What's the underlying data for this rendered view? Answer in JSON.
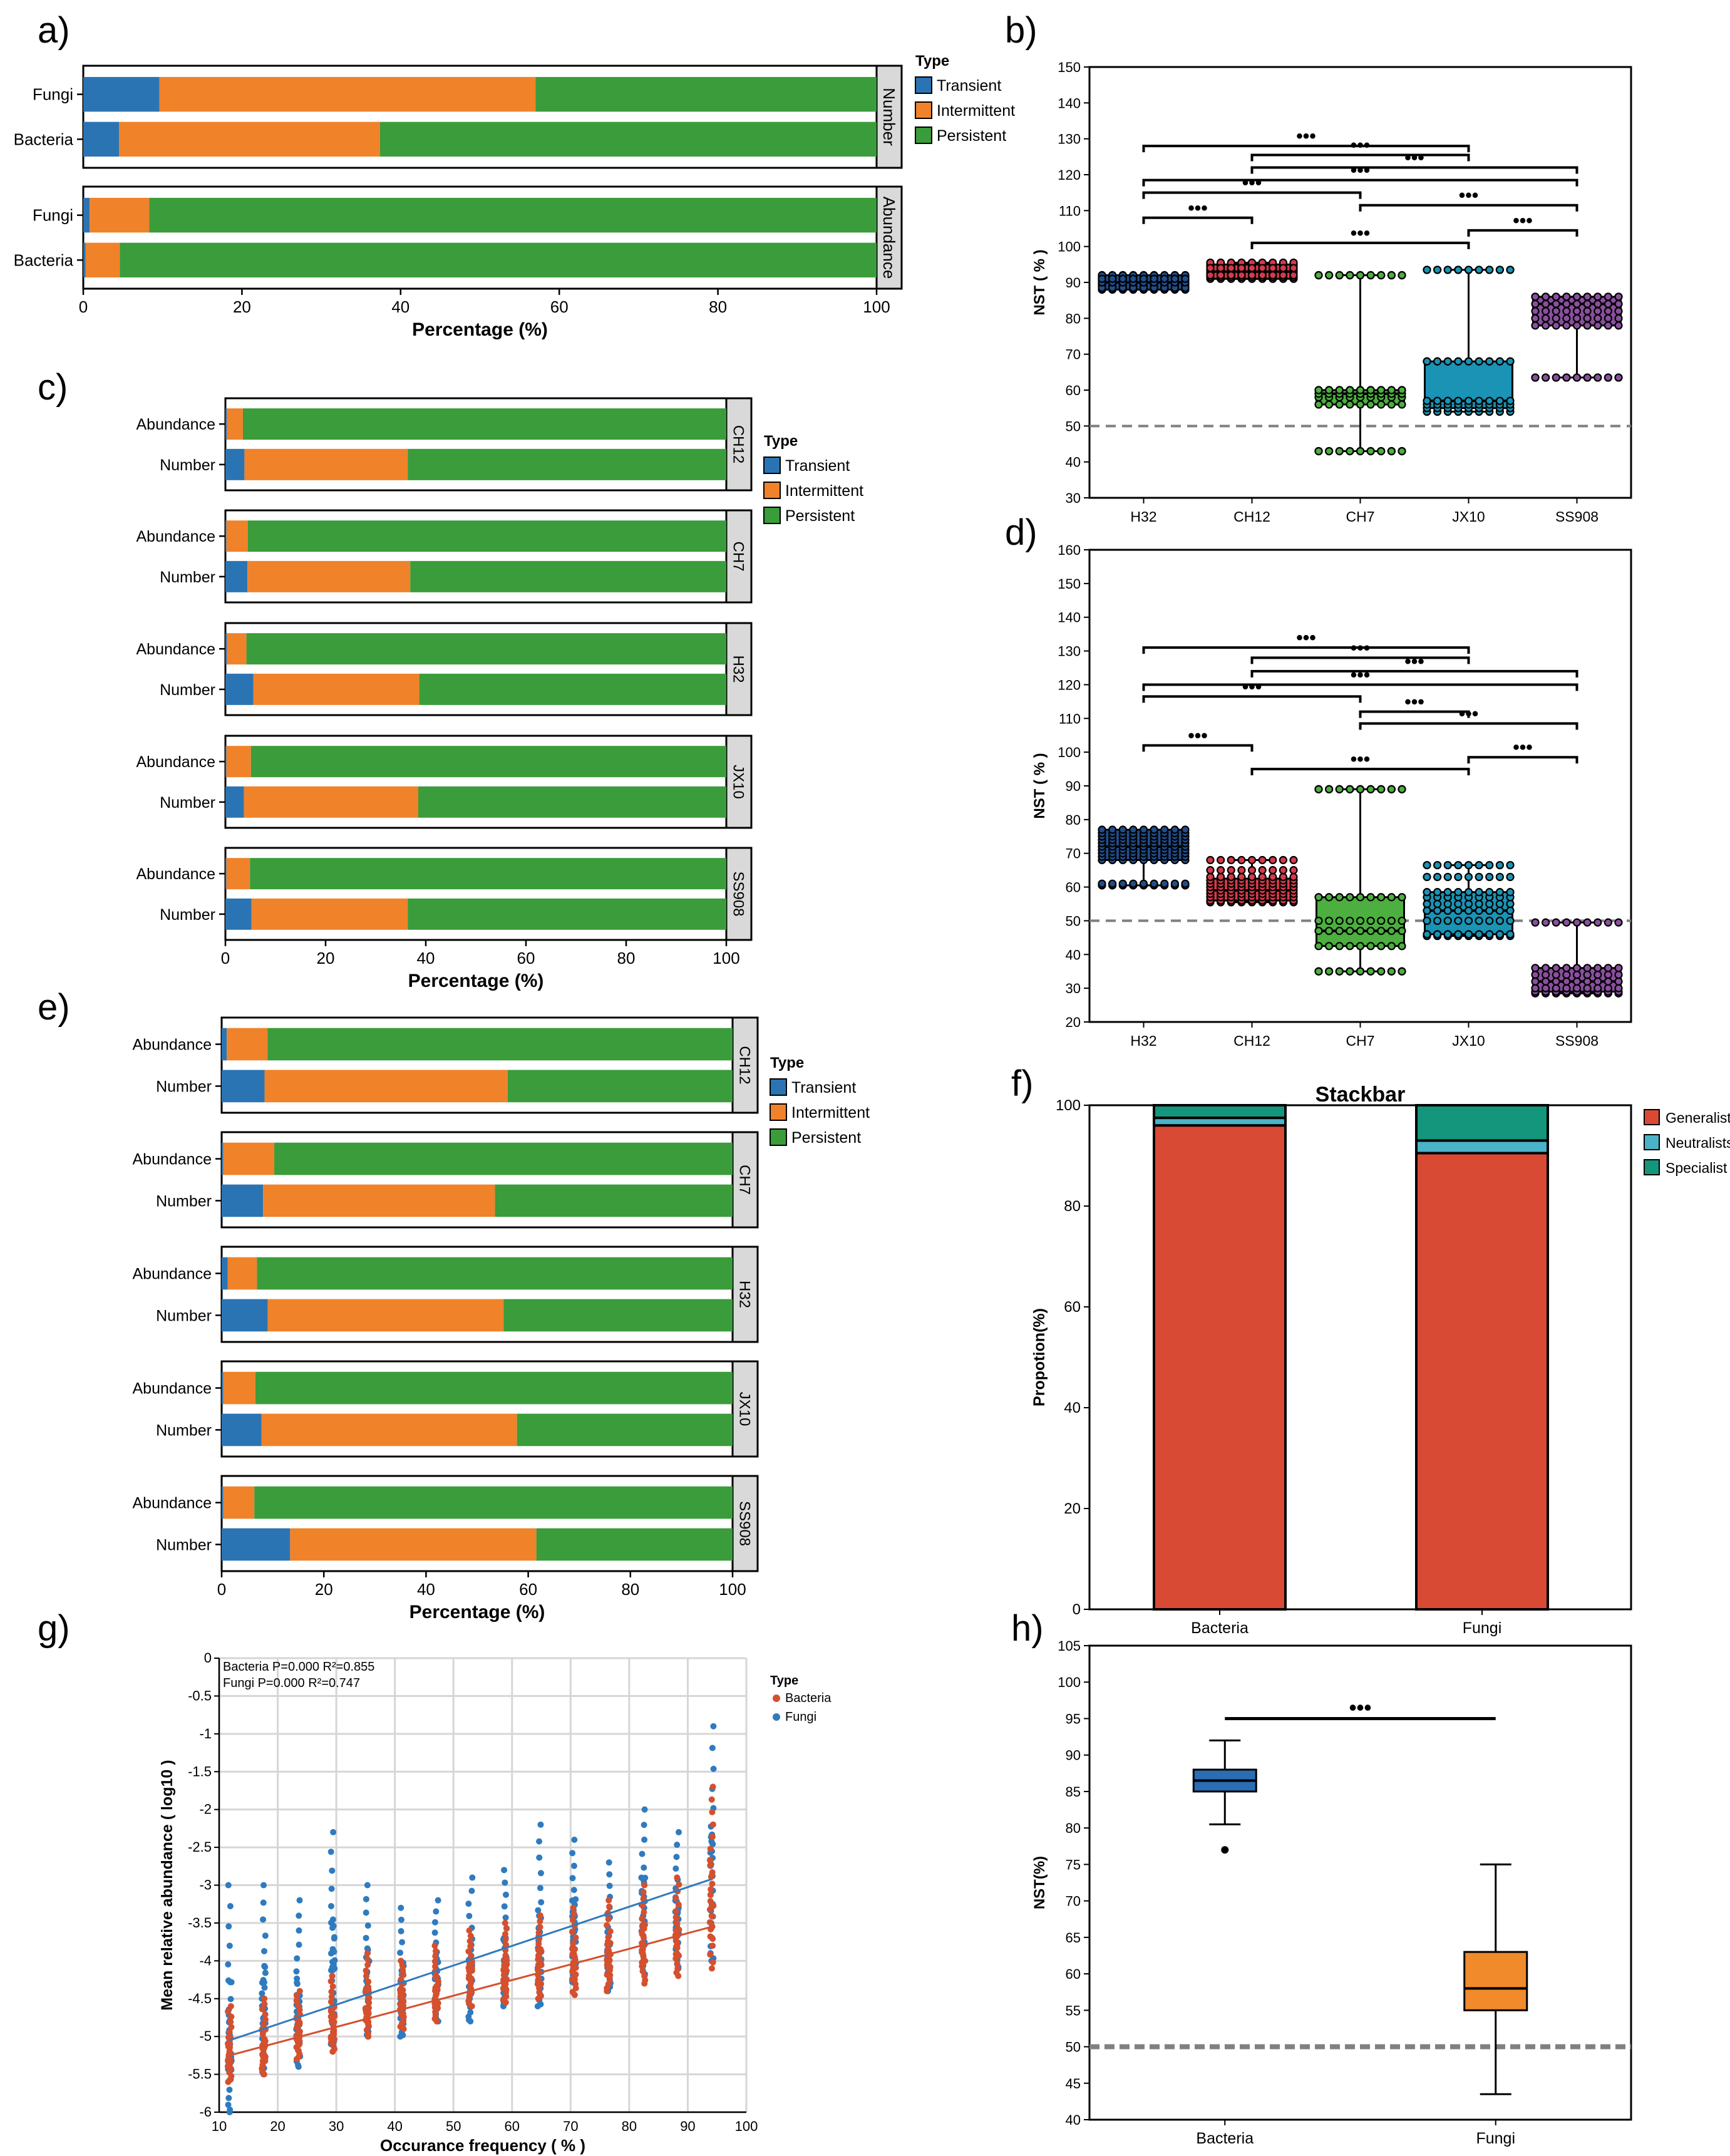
{
  "colors": {
    "transient": "#2b74b3",
    "intermittent": "#f0822a",
    "persistent": "#3a9c3a",
    "generalists": "#d94a35",
    "neutralists": "#4bb3c8",
    "specialist": "#14967d",
    "bacteria_dot": "#d4502e",
    "fungi_dot": "#2f7bbf",
    "strip": "#d9d9d9",
    "box_h32": "#1f4e8c",
    "box_ch12": "#d63a4a",
    "box_ch7": "#4caf3f",
    "box_jx10": "#1a93b5",
    "box_ss908": "#8a4f9e",
    "box_bac": "#2a6db5",
    "box_fun": "#f08a2a"
  },
  "panel_labels": [
    "a)",
    "b)",
    "c)",
    "d)",
    "e)",
    "f)",
    "g)",
    "h)"
  ],
  "chart_data": [
    {
      "id": "a",
      "type": "bar",
      "orientation": "horizontal",
      "stacked": true,
      "xlabel": "Percentage (%)",
      "xlim": [
        0,
        100
      ],
      "xticks": [
        "0",
        "20",
        "40",
        "60",
        "80",
        "100"
      ],
      "legend": {
        "title": "Type",
        "items": [
          "Transient",
          "Intermittent",
          "Persistent"
        ]
      },
      "facets": [
        {
          "strip": "Number",
          "rows": [
            {
              "label": "Fungi",
              "values": [
                9.6,
                47.4,
                43.0
              ]
            },
            {
              "label": "Bacteria",
              "values": [
                4.5,
                32.9,
                62.6
              ]
            }
          ]
        },
        {
          "strip": "Abundance",
          "rows": [
            {
              "label": "Fungi",
              "values": [
                0.8,
                7.5,
                91.7
              ]
            },
            {
              "label": "Bacteria",
              "values": [
                0.3,
                4.3,
                95.4
              ]
            }
          ]
        }
      ]
    },
    {
      "id": "b",
      "type": "box",
      "ylabel": "NST ( % )",
      "ylim": [
        30,
        150
      ],
      "yticks": [
        "30",
        "40",
        "50",
        "60",
        "70",
        "80",
        "90",
        "100",
        "110",
        "120",
        "130",
        "140",
        "150"
      ],
      "reference_line": 50,
      "categories": [
        "H32",
        "CH12",
        "CH7",
        "JX10",
        "SS908"
      ],
      "boxes": [
        {
          "name": "H32",
          "whislo": 88,
          "q1": 88,
          "med": 90,
          "q3": 92,
          "whishi": 92,
          "points": [
            88,
            88.5,
            89,
            89.5,
            90,
            90.5,
            91,
            91.5,
            92,
            92,
            88.5,
            90,
            91
          ]
        },
        {
          "name": "CH12",
          "whislo": 91,
          "q1": 91,
          "med": 93,
          "q3": 95,
          "whishi": 95.5,
          "points": [
            91,
            91.5,
            92,
            92.5,
            93,
            93.5,
            94,
            94.5,
            95,
            95.5,
            92,
            94
          ]
        },
        {
          "name": "CH7",
          "whislo": 43,
          "q1": 56,
          "med": 59,
          "q3": 60,
          "whishi": 92,
          "points": [
            43,
            43,
            56,
            58,
            59,
            60,
            60,
            92,
            92
          ]
        },
        {
          "name": "JX10",
          "whislo": 54,
          "q1": 55,
          "med": 57,
          "q3": 68,
          "whishi": 93.5,
          "points": [
            54,
            55,
            56,
            57,
            68,
            68,
            93.5,
            93.5
          ]
        },
        {
          "name": "SS908",
          "whislo": 63.5,
          "q1": 78,
          "med": 84,
          "q3": 86,
          "whishi": 86,
          "points": [
            63.5,
            63.5,
            78,
            80,
            82,
            84,
            86,
            86
          ]
        }
      ],
      "brackets": [
        {
          "from": "H32",
          "to": "JX10",
          "y": 128,
          "label": "•••"
        },
        {
          "from": "CH12",
          "to": "JX10",
          "y": 125.5,
          "label": "•••"
        },
        {
          "from": "CH12",
          "to": "SS908",
          "y": 122,
          "label": "•••"
        },
        {
          "from": "H32",
          "to": "SS908",
          "y": 118.5,
          "label": "•••"
        },
        {
          "from": "H32",
          "to": "CH7",
          "y": 115,
          "label": "•••"
        },
        {
          "from": "CH7",
          "to": "SS908",
          "y": 111.5,
          "label": "•••"
        },
        {
          "from": "H32",
          "to": "CH12",
          "y": 108,
          "label": "•••"
        },
        {
          "from": "CH12",
          "to": "JX10",
          "y": 101,
          "label": "•••"
        },
        {
          "from": "JX10",
          "to": "SS908",
          "y": 104.5,
          "label": "•••"
        }
      ]
    },
    {
      "id": "c",
      "type": "bar",
      "orientation": "horizontal",
      "stacked": true,
      "xlabel": "Percentage (%)",
      "xlim": [
        0,
        100
      ],
      "xticks": [
        "0",
        "20",
        "40",
        "60",
        "80",
        "100"
      ],
      "legend": {
        "title": "Type",
        "items": [
          "Transient",
          "Intermittent",
          "Persistent"
        ]
      },
      "facets": [
        {
          "strip": "CH12",
          "rows": [
            {
              "label": "Abundance",
              "values": [
                0.3,
                3.2,
                96.5
              ]
            },
            {
              "label": "Number",
              "values": [
                3.8,
                32.6,
                63.6
              ]
            }
          ]
        },
        {
          "strip": "CH7",
          "rows": [
            {
              "label": "Abundance",
              "values": [
                0.2,
                4.3,
                95.5
              ]
            },
            {
              "label": "Number",
              "values": [
                4.4,
                32.5,
                63.1
              ]
            }
          ]
        },
        {
          "strip": "H32",
          "rows": [
            {
              "label": "Abundance",
              "values": [
                0.3,
                3.9,
                95.8
              ]
            },
            {
              "label": "Number",
              "values": [
                5.6,
                33.1,
                61.3
              ]
            }
          ]
        },
        {
          "strip": "JX10",
          "rows": [
            {
              "label": "Abundance",
              "values": [
                0.2,
                4.9,
                94.9
              ]
            },
            {
              "label": "Number",
              "values": [
                3.7,
                34.8,
                61.5
              ]
            }
          ]
        },
        {
          "strip": "SS908",
          "rows": [
            {
              "label": "Abundance",
              "values": [
                0.2,
                4.7,
                95.1
              ]
            },
            {
              "label": "Number",
              "values": [
                5.2,
                31.2,
                63.6
              ]
            }
          ]
        }
      ]
    },
    {
      "id": "d",
      "type": "box",
      "ylabel": "NST ( % )",
      "ylim": [
        20,
        160
      ],
      "yticks": [
        "20",
        "30",
        "40",
        "50",
        "60",
        "70",
        "80",
        "90",
        "100",
        "110",
        "120",
        "130",
        "140",
        "150",
        "160"
      ],
      "reference_line": 50,
      "categories": [
        "H32",
        "CH12",
        "CH7",
        "JX10",
        "SS908"
      ],
      "boxes": [
        {
          "name": "H32",
          "whislo": 60.5,
          "q1": 68,
          "med": 72,
          "q3": 77,
          "whishi": 77,
          "points": [
            60.5,
            61,
            68,
            69,
            70,
            71,
            72,
            73,
            74,
            75,
            76,
            77
          ]
        },
        {
          "name": "CH12",
          "whislo": 55.5,
          "q1": 56,
          "med": 59,
          "q3": 62.5,
          "whishi": 68,
          "points": [
            55.5,
            56,
            57,
            58,
            59,
            60,
            61,
            62,
            63,
            65,
            68
          ]
        },
        {
          "name": "CH7",
          "whislo": 35,
          "q1": 42.5,
          "med": 47,
          "q3": 57,
          "whishi": 89,
          "points": [
            35,
            35,
            42.5,
            47,
            50,
            57,
            89,
            89
          ]
        },
        {
          "name": "JX10",
          "whislo": 45.5,
          "q1": 46,
          "med": 53,
          "q3": 58.5,
          "whishi": 66.5,
          "points": [
            45.5,
            46,
            50,
            53,
            55,
            57,
            58.5,
            63,
            66.5
          ]
        },
        {
          "name": "SS908",
          "whislo": 28.5,
          "q1": 29,
          "med": 32,
          "q3": 36,
          "whishi": 49.5,
          "points": [
            28.5,
            29,
            30,
            32,
            34,
            36,
            49.5
          ]
        }
      ],
      "brackets": [
        {
          "from": "H32",
          "to": "JX10",
          "y": 131,
          "label": "•••"
        },
        {
          "from": "CH12",
          "to": "JX10",
          "y": 128,
          "label": "•••"
        },
        {
          "from": "CH12",
          "to": "SS908",
          "y": 124,
          "label": "•••"
        },
        {
          "from": "H32",
          "to": "SS908",
          "y": 120,
          "label": "•••"
        },
        {
          "from": "H32",
          "to": "CH7",
          "y": 116.5,
          "label": "•••"
        },
        {
          "from": "CH7",
          "to": "JX10",
          "y": 112,
          "label": "•••"
        },
        {
          "from": "CH7",
          "to": "SS908",
          "y": 108.5,
          "label": "•••"
        },
        {
          "from": "H32",
          "to": "CH12",
          "y": 102,
          "label": "•••"
        },
        {
          "from": "JX10",
          "to": "SS908",
          "y": 98.5,
          "label": "•••"
        },
        {
          "from": "CH12",
          "to": "JX10",
          "y": 95,
          "label": "•••"
        }
      ]
    },
    {
      "id": "e",
      "type": "bar",
      "orientation": "horizontal",
      "stacked": true,
      "xlabel": "Percentage (%)",
      "xlim": [
        0,
        100
      ],
      "xticks": [
        "0",
        "20",
        "40",
        "60",
        "80",
        "100"
      ],
      "legend": {
        "title": "Type",
        "items": [
          "Transient",
          "Intermittent",
          "Persistent"
        ]
      },
      "facets": [
        {
          "strip": "CH12",
          "rows": [
            {
              "label": "Abundance",
              "values": [
                1.0,
                8.0,
                91.0
              ]
            },
            {
              "label": "Number",
              "values": [
                8.4,
                47.6,
                44.0
              ]
            }
          ]
        },
        {
          "strip": "CH7",
          "rows": [
            {
              "label": "Abundance",
              "values": [
                0.3,
                10.0,
                89.7
              ]
            },
            {
              "label": "Number",
              "values": [
                8.1,
                45.4,
                46.5
              ]
            }
          ]
        },
        {
          "strip": "H32",
          "rows": [
            {
              "label": "Abundance",
              "values": [
                1.2,
                5.7,
                93.1
              ]
            },
            {
              "label": "Number",
              "values": [
                9.0,
                46.2,
                44.8
              ]
            }
          ]
        },
        {
          "strip": "JX10",
          "rows": [
            {
              "label": "Abundance",
              "values": [
                0.3,
                6.3,
                93.4
              ]
            },
            {
              "label": "Number",
              "values": [
                7.8,
                50.0,
                42.2
              ]
            }
          ]
        },
        {
          "strip": "SS908",
          "rows": [
            {
              "label": "Abundance",
              "values": [
                0.3,
                6.1,
                93.6
              ]
            },
            {
              "label": "Number",
              "values": [
                13.4,
                48.2,
                38.4
              ]
            }
          ]
        }
      ]
    },
    {
      "id": "f",
      "type": "bar",
      "stacked": true,
      "title": "Stackbar",
      "ylabel": "Propotion(%)",
      "ylim": [
        0,
        100
      ],
      "yticks": [
        "0",
        "20",
        "40",
        "60",
        "80",
        "100"
      ],
      "categories": [
        "Bacteria",
        "Fungi"
      ],
      "series": [
        {
          "name": "Generalists",
          "values": [
            96.0,
            90.5
          ]
        },
        {
          "name": "Neutralists",
          "values": [
            1.5,
            2.5
          ]
        },
        {
          "name": "Specialist",
          "values": [
            2.5,
            7.0
          ]
        }
      ]
    },
    {
      "id": "g",
      "type": "scatter",
      "xlabel": "Occurance frequency ( % )",
      "ylabel": "Mean relative abundance ( log10 )",
      "xlim": [
        10,
        100
      ],
      "ylim": [
        -6,
        0
      ],
      "xticks": [
        "10",
        "20",
        "30",
        "40",
        "50",
        "60",
        "70",
        "80",
        "90",
        "100"
      ],
      "yticks": [
        "-6",
        "-5.5",
        "-5",
        "-4.5",
        "-4",
        "-3.5",
        "-3",
        "-2.5",
        "-2",
        "-1.5",
        "-1",
        "-0.5",
        "0"
      ],
      "annotations": [
        "Bacteria P=0.000 R²=0.855",
        "Fungi P=0.000 R²=0.747"
      ],
      "legend": {
        "title": "Type",
        "items": [
          "Bacteria",
          "Fungi"
        ]
      },
      "x_levels": [
        11.8,
        17.6,
        23.5,
        29.4,
        35.3,
        41.2,
        47.1,
        52.9,
        58.8,
        64.7,
        70.6,
        76.5,
        82.4,
        88.2,
        94.1
      ],
      "series": [
        {
          "name": "Bacteria",
          "fit": [
            [
              11.8,
              -5.25
            ],
            [
              94.1,
              -3.55
            ]
          ],
          "ranges": [
            [
              -5.6,
              -4.6
            ],
            [
              -5.5,
              -4.5
            ],
            [
              -5.3,
              -4.4
            ],
            [
              -5.2,
              -4.2
            ],
            [
              -5.0,
              -3.9
            ],
            [
              -4.9,
              -4.0
            ],
            [
              -4.8,
              -3.8
            ],
            [
              -4.6,
              -3.6
            ],
            [
              -4.55,
              -3.5
            ],
            [
              -4.5,
              -3.4
            ],
            [
              -4.45,
              -3.3
            ],
            [
              -4.4,
              -3.2
            ],
            [
              -4.3,
              -3.0
            ],
            [
              -4.2,
              -2.9
            ],
            [
              -4.1,
              -1.7
            ]
          ]
        },
        {
          "name": "Fungi",
          "fit": [
            [
              11.8,
              -5.05
            ],
            [
              94.1,
              -2.92
            ]
          ],
          "ranges": [
            [
              -6.0,
              -3.0
            ],
            [
              -5.5,
              -3.0
            ],
            [
              -5.4,
              -3.2
            ],
            [
              -5.1,
              -2.3
            ],
            [
              -5.0,
              -3.0
            ],
            [
              -5.0,
              -3.3
            ],
            [
              -4.8,
              -3.2
            ],
            [
              -4.8,
              -2.9
            ],
            [
              -4.6,
              -2.8
            ],
            [
              -4.6,
              -2.2
            ],
            [
              -4.3,
              -2.4
            ],
            [
              -4.4,
              -2.7
            ],
            [
              -4.2,
              -2.0
            ],
            [
              -4.1,
              -2.3
            ],
            [
              -4.0,
              -0.9
            ]
          ]
        }
      ]
    },
    {
      "id": "h",
      "type": "box",
      "ylabel": "NST(%)",
      "ylim": [
        40,
        105
      ],
      "yticks": [
        "40",
        "45",
        "50",
        "55",
        "60",
        "65",
        "70",
        "75",
        "80",
        "85",
        "90",
        "95",
        "100",
        "105"
      ],
      "reference_line": 50,
      "categories": [
        "Bacteria",
        "Fungi"
      ],
      "boxes": [
        {
          "name": "Bacteria",
          "whislo": 80.5,
          "q1": 85,
          "med": 86.5,
          "q3": 88,
          "whishi": 92,
          "outliers": [
            77
          ]
        },
        {
          "name": "Fungi",
          "whislo": 43.5,
          "q1": 55,
          "med": 58,
          "q3": 63,
          "whishi": 75,
          "outliers": []
        }
      ],
      "brackets": [
        {
          "from": "Bacteria",
          "to": "Fungi",
          "y": 95,
          "label": "•••"
        }
      ]
    }
  ]
}
